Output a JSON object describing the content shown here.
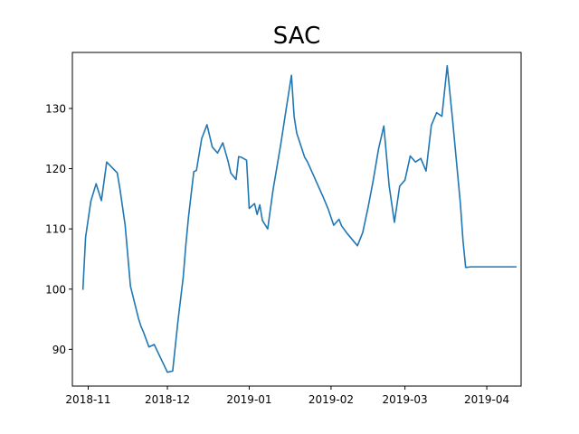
{
  "chart_data": {
    "type": "line",
    "title": "SAC",
    "xlabel": "",
    "ylabel": "",
    "x_ticks": [
      "2018-11",
      "2018-12",
      "2019-01",
      "2019-02",
      "2019-03",
      "2019-04"
    ],
    "y_ticks": [
      90,
      100,
      110,
      120,
      130
    ],
    "xlim": [
      "2018-10-26",
      "2019-04-14"
    ],
    "ylim": [
      83.9,
      139.3
    ],
    "grid": false,
    "color": "#1f77b4",
    "series": [
      {
        "x": [
          "2018-10-30",
          "2018-10-31",
          "2018-11-02",
          "2018-11-04",
          "2018-11-06",
          "2018-11-08",
          "2018-11-12",
          "2018-11-13",
          "2018-11-15",
          "2018-11-17",
          "2018-11-20",
          "2018-11-21",
          "2018-11-22",
          "2018-11-24",
          "2018-11-26",
          "2018-12-01",
          "2018-12-03",
          "2018-12-05",
          "2018-12-07",
          "2018-12-08",
          "2018-12-09",
          "2018-12-11",
          "2018-12-12",
          "2018-12-14",
          "2018-12-16",
          "2018-12-18",
          "2018-12-20",
          "2018-12-22",
          "2018-12-24",
          "2018-12-25",
          "2018-12-27",
          "2018-12-28",
          "2018-12-29",
          "2018-12-31",
          "2019-01-01",
          "2019-01-03",
          "2019-01-04",
          "2019-01-05",
          "2019-01-06",
          "2019-01-08",
          "2019-01-10",
          "2019-01-13",
          "2019-01-15",
          "2019-01-17",
          "2019-01-18",
          "2019-01-19",
          "2019-01-22",
          "2019-01-23",
          "2019-01-29",
          "2019-01-31",
          "2019-02-02",
          "2019-02-04",
          "2019-02-05",
          "2019-02-07",
          "2019-02-11",
          "2019-02-13",
          "2019-02-15",
          "2019-02-17",
          "2019-02-19",
          "2019-02-21",
          "2019-02-23",
          "2019-02-25",
          "2019-02-27",
          "2019-03-01",
          "2019-03-03",
          "2019-03-05",
          "2019-03-07",
          "2019-03-09",
          "2019-03-11",
          "2019-03-13",
          "2019-03-15",
          "2019-03-17",
          "2019-03-19",
          "2019-03-21",
          "2019-03-22",
          "2019-03-23",
          "2019-03-24",
          "2019-03-26",
          "2019-03-28",
          "2019-03-30",
          "2019-04-01",
          "2019-04-03",
          "2019-04-05",
          "2019-04-07",
          "2019-04-09",
          "2019-04-11",
          "2019-04-12"
        ],
        "values": [
          100.0,
          108.6,
          114.6,
          117.5,
          114.7,
          121.1,
          119.3,
          116.7,
          110.6,
          100.5,
          95.2,
          93.8,
          92.8,
          90.4,
          90.8,
          86.2,
          86.4,
          94.7,
          102.0,
          107.4,
          112.0,
          119.5,
          119.7,
          125.0,
          127.3,
          123.6,
          122.6,
          124.3,
          121.2,
          119.3,
          118.2,
          122.0,
          121.9,
          121.4,
          113.4,
          114.2,
          112.4,
          114.0,
          111.4,
          110.0,
          116.4,
          124.2,
          129.9,
          135.5,
          128.7,
          125.9,
          121.9,
          121.2,
          115.3,
          113.2,
          110.6,
          111.6,
          110.5,
          109.3,
          107.2,
          109.4,
          113.5,
          118.1,
          123.3,
          127.1,
          117.2,
          111.1,
          117.1,
          118.1,
          122.1,
          121.1,
          121.7,
          119.6,
          127.2,
          129.3,
          128.7,
          137.1,
          128.3,
          118.9,
          114.2,
          108.0,
          103.6,
          103.7,
          103.7,
          103.7,
          103.7,
          103.7,
          103.7,
          103.7,
          103.7,
          103.7,
          103.7
        ]
      }
    ]
  }
}
